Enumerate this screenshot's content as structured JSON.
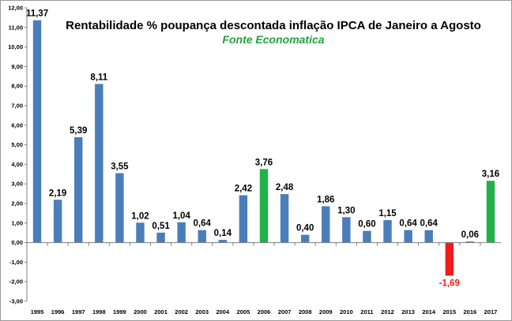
{
  "chart_data": {
    "type": "bar",
    "title": "Rentabilidade % poupança descontada inflação IPCA de Janeiro a Agosto",
    "subtitle": "Fonte Economatica",
    "xlabel": "",
    "ylabel": "",
    "ylim": [
      -3,
      12
    ],
    "yticks": [
      "-3,00",
      "-2,00",
      "-1,00",
      "0,00",
      "1,00",
      "2,00",
      "3,00",
      "4,00",
      "5,00",
      "6,00",
      "7,00",
      "8,00",
      "9,00",
      "10,00",
      "11,00",
      "12,00"
    ],
    "categories": [
      "1995",
      "1996",
      "1997",
      "1998",
      "1999",
      "2000",
      "2001",
      "2002",
      "2003",
      "2004",
      "2005",
      "2006",
      "2007",
      "2008",
      "2009",
      "2010",
      "2011",
      "2012",
      "2013",
      "2014",
      "2015",
      "2016",
      "2017"
    ],
    "values": [
      11.37,
      2.19,
      5.39,
      8.11,
      3.55,
      1.02,
      0.51,
      1.04,
      0.64,
      0.14,
      2.42,
      3.76,
      2.48,
      0.4,
      1.86,
      1.3,
      0.6,
      1.15,
      0.64,
      0.64,
      -1.69,
      0.06,
      3.16
    ],
    "labels": [
      "11,37",
      "2,19",
      "5,39",
      "8,11",
      "3,55",
      "1,02",
      "0,51",
      "1,04",
      "0,64",
      "0,14",
      "2,42",
      "3,76",
      "2,48",
      "0,40",
      "1,86",
      "1,30",
      "0,60",
      "1,15",
      "0,64",
      "0,64",
      "-1,69",
      "0,06",
      "3,16"
    ],
    "bar_colors": [
      "#4a7ebb",
      "#4a7ebb",
      "#4a7ebb",
      "#4a7ebb",
      "#4a7ebb",
      "#4a7ebb",
      "#4a7ebb",
      "#4a7ebb",
      "#4a7ebb",
      "#4a7ebb",
      "#4a7ebb",
      "#22b04b",
      "#4a7ebb",
      "#4a7ebb",
      "#4a7ebb",
      "#4a7ebb",
      "#4a7ebb",
      "#4a7ebb",
      "#4a7ebb",
      "#4a7ebb",
      "#ee1c1c",
      "#4a7ebb",
      "#22b04b"
    ],
    "label_colors": [
      "#000000",
      "#000000",
      "#000000",
      "#000000",
      "#000000",
      "#000000",
      "#000000",
      "#000000",
      "#000000",
      "#000000",
      "#000000",
      "#000000",
      "#000000",
      "#000000",
      "#000000",
      "#000000",
      "#000000",
      "#000000",
      "#000000",
      "#000000",
      "#ee1c1c",
      "#000000",
      "#000000"
    ],
    "subtitle_color": "#22a23e",
    "grid": false,
    "legend": "none"
  }
}
